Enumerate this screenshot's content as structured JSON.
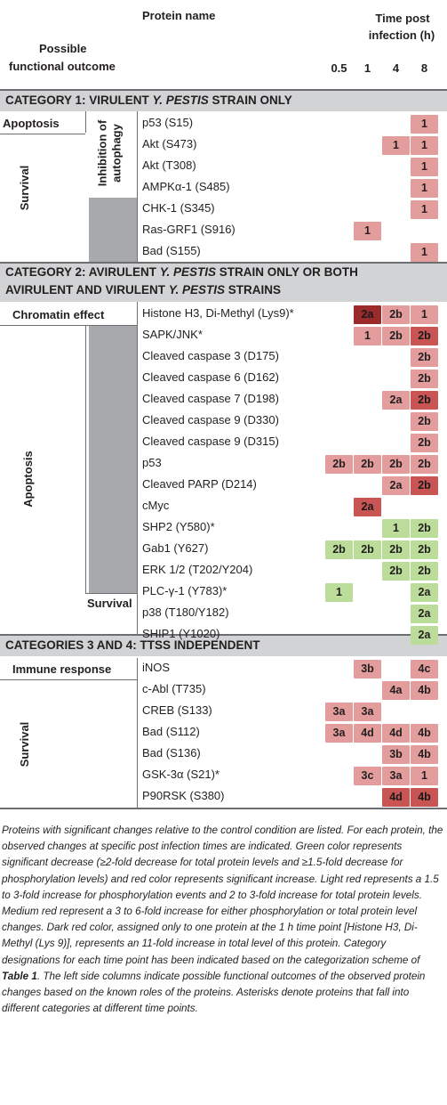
{
  "header": {
    "protein_name": "Protein name",
    "outcome_line1": "Possible",
    "outcome_line2": "functional outcome",
    "time_line1": "Time post",
    "time_line2": "infection (h)",
    "times": [
      "0.5",
      "1",
      "4",
      "8"
    ]
  },
  "categories": [
    {
      "title_pre": "CATEGORY 1: VIRULENT ",
      "title_it": "Y. PESTIS",
      "title_post": " STRAIN ONLY"
    },
    {
      "line1_pre": "CATEGORY 2: AVIRULENT ",
      "line1_it": "Y. PESTIS",
      "line1_post": " STRAIN ONLY OR BOTH",
      "line2_pre": "AVIRULENT AND VIRULENT ",
      "line2_it": "Y. PESTIS",
      "line2_post": " STRAINS"
    },
    {
      "title": "CATEGORIES 3 AND 4: TTSS INDEPENDENT"
    }
  ],
  "groups": {
    "apoptosis_1": "Apoptosis",
    "survival_1": "Survival",
    "inhibition_1": "Inhibition of",
    "inhibition_2": "autophagy",
    "chromatin": "Chromatin effect",
    "apoptosis_2": "Apoptosis",
    "survival_2": "Survival",
    "immune": "Immune response",
    "survival_3": "Survival"
  },
  "rows": [
    {
      "name": "p53 (S15)",
      "cells": [
        "",
        "",
        "",
        "1"
      ],
      "colors": [
        "",
        "",
        "",
        "lr"
      ]
    },
    {
      "name": "Akt (S473)",
      "cells": [
        "",
        "",
        "1",
        "1"
      ],
      "colors": [
        "",
        "",
        "lr",
        "lr"
      ]
    },
    {
      "name": "Akt (T308)",
      "cells": [
        "",
        "",
        "",
        "1"
      ],
      "colors": [
        "",
        "",
        "",
        "lr"
      ]
    },
    {
      "name": "AMPKα-1 (S485)",
      "cells": [
        "",
        "",
        "",
        "1"
      ],
      "colors": [
        "",
        "",
        "",
        "lr"
      ]
    },
    {
      "name": "CHK-1 (S345)",
      "cells": [
        "",
        "",
        "",
        "1"
      ],
      "colors": [
        "",
        "",
        "",
        "lr"
      ]
    },
    {
      "name": "Ras-GRF1 (S916)",
      "cells": [
        "",
        "1",
        "",
        ""
      ],
      "colors": [
        "",
        "lr",
        "",
        ""
      ]
    },
    {
      "name": "Bad (S155)",
      "cells": [
        "",
        "",
        "",
        "1"
      ],
      "colors": [
        "",
        "",
        "",
        "lr"
      ]
    },
    {
      "name": "Histone H3, Di-Methyl (Lys9)*",
      "cells": [
        "",
        "2a",
        "2b",
        "1"
      ],
      "colors": [
        "",
        "dr",
        "lr",
        "lr"
      ]
    },
    {
      "name": "SAPK/JNK*",
      "cells": [
        "",
        "1",
        "2b",
        "2b"
      ],
      "colors": [
        "",
        "lr",
        "lr",
        "mr"
      ]
    },
    {
      "name": "Cleaved caspase 3 (D175)",
      "cells": [
        "",
        "",
        "",
        "2b"
      ],
      "colors": [
        "",
        "",
        "",
        "lr"
      ]
    },
    {
      "name": "Cleaved caspase 6 (D162)",
      "cells": [
        "",
        "",
        "",
        "2b"
      ],
      "colors": [
        "",
        "",
        "",
        "lr"
      ]
    },
    {
      "name": "Cleaved caspase 7 (D198)",
      "cells": [
        "",
        "",
        "2a",
        "2b"
      ],
      "colors": [
        "",
        "",
        "lr",
        "mr"
      ]
    },
    {
      "name": "Cleaved caspase 9 (D330)",
      "cells": [
        "",
        "",
        "",
        "2b"
      ],
      "colors": [
        "",
        "",
        "",
        "lr"
      ]
    },
    {
      "name": "Cleaved caspase 9 (D315)",
      "cells": [
        "",
        "",
        "",
        "2b"
      ],
      "colors": [
        "",
        "",
        "",
        "lr"
      ]
    },
    {
      "name": "p53",
      "cells": [
        "2b",
        "2b",
        "2b",
        "2b"
      ],
      "colors": [
        "lr",
        "lr",
        "lr",
        "lr"
      ]
    },
    {
      "name": "Cleaved PARP (D214)",
      "cells": [
        "",
        "",
        "2a",
        "2b"
      ],
      "colors": [
        "",
        "",
        "lr",
        "mr"
      ]
    },
    {
      "name": "cMyc",
      "cells": [
        "",
        "2a",
        "",
        ""
      ],
      "colors": [
        "",
        "mr",
        "",
        ""
      ]
    },
    {
      "name": "SHP2 (Y580)*",
      "cells": [
        "",
        "",
        "1",
        "2b"
      ],
      "colors": [
        "",
        "",
        "gr",
        "gr"
      ]
    },
    {
      "name": "Gab1 (Y627)",
      "cells": [
        "2b",
        "2b",
        "2b",
        "2b"
      ],
      "colors": [
        "gr",
        "gr",
        "gr",
        "gr"
      ]
    },
    {
      "name": "ERK 1/2 (T202/Y204)",
      "cells": [
        "",
        "",
        "2b",
        "2b"
      ],
      "colors": [
        "",
        "",
        "gr",
        "gr"
      ]
    },
    {
      "name": "PLC-γ-1 (Y783)*",
      "cells": [
        "1",
        "",
        "",
        "2a"
      ],
      "colors": [
        "gr",
        "",
        "",
        "gr"
      ]
    },
    {
      "name": "p38 (T180/Y182)",
      "cells": [
        "",
        "",
        "",
        "2a"
      ],
      "colors": [
        "",
        "",
        "",
        "gr"
      ]
    },
    {
      "name": "SHIP1 (Y1020)",
      "cells": [
        "",
        "",
        "",
        "2a"
      ],
      "colors": [
        "",
        "",
        "",
        "gr"
      ]
    },
    {
      "name": "iNOS",
      "cells": [
        "",
        "3b",
        "",
        "4c"
      ],
      "colors": [
        "",
        "lr",
        "",
        "lr"
      ]
    },
    {
      "name": "c-Abl (T735)",
      "cells": [
        "",
        "",
        "4a",
        "4b"
      ],
      "colors": [
        "",
        "",
        "lr",
        "lr"
      ]
    },
    {
      "name": "CREB (S133)",
      "cells": [
        "3a",
        "3a",
        "",
        ""
      ],
      "colors": [
        "lr",
        "lr",
        "",
        ""
      ]
    },
    {
      "name": "Bad (S112)",
      "cells": [
        "3a",
        "4d",
        "4d",
        "4b"
      ],
      "colors": [
        "lr",
        "lr",
        "lr",
        "lr"
      ]
    },
    {
      "name": "Bad (S136)",
      "cells": [
        "",
        "",
        "3b",
        "4b"
      ],
      "colors": [
        "",
        "",
        "lr",
        "lr"
      ]
    },
    {
      "name": "GSK-3α (S21)*",
      "cells": [
        "",
        "3c",
        "3a",
        "1"
      ],
      "colors": [
        "",
        "lr",
        "lr",
        "lr"
      ]
    },
    {
      "name": "P90RSK (S380)",
      "cells": [
        "",
        "",
        "4d",
        "4b"
      ],
      "colors": [
        "",
        "",
        "mr",
        "mr"
      ]
    }
  ],
  "footnote": {
    "p1": "Proteins with significant changes relative to the control condition are listed. For each protein, the observed changes at specific post infection times are indicated. Green color represents significant decrease (≥2-fold decrease for total protein levels and ≥1.5-fold decrease for phosphorylation levels) and red color represents significant increase. Light red represents a 1.5 to 3-fold increase for phosphorylation events and 2 to 3-fold increase for total protein levels. Medium red represent a 3 to 6-fold increase for either phosphorylation or total protein level changes. Dark red color, assigned only to one protein at the 1 h time point [Histone H3, Di-Methyl (Lys 9)], represents an 11-fold increase in total level of this protein. Category designations for each time point has been indicated based on the categorization scheme of ",
    "table_ref": "Table 1",
    "p2": ". The left side columns indicate possible functional outcomes of the observed protein changes based on the known roles of the proteins. Asterisks denote proteins that fall into different categories at different time points."
  },
  "colors": {
    "light_red": "#e49d9d",
    "medium_red": "#c95454",
    "dark_red": "#9b2a2a",
    "green": "#bcdd9a",
    "gray": "#a7a9ac",
    "category_bg": "#d1d3d4"
  }
}
